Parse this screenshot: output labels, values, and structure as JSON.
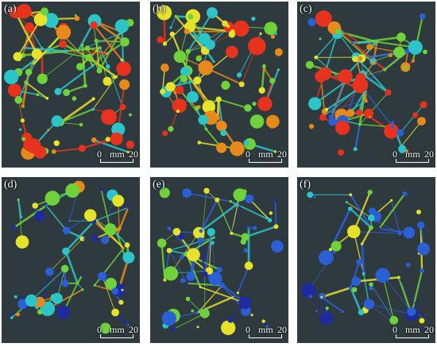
{
  "panels": [
    {
      "label": "(a)",
      "palette": "warm",
      "density": 1.0
    },
    {
      "label": "(b)",
      "palette": "warm",
      "density": 0.85
    },
    {
      "label": "(c)",
      "palette": "mixed",
      "density": 0.7
    },
    {
      "label": "(d)",
      "palette": "mixed-cool",
      "density": 0.55
    },
    {
      "label": "(e)",
      "palette": "cool",
      "density": 0.65
    },
    {
      "label": "(f)",
      "palette": "cool",
      "density": 0.5
    }
  ],
  "scale_bar": {
    "start": "0",
    "unit": "mm",
    "end": "20"
  },
  "colors": {
    "background": "#2e3a3d",
    "red": "#e8321e",
    "orange": "#e88a1a",
    "yellow": "#e6e22a",
    "green": "#6fd23a",
    "cyan": "#2bc4c8",
    "blue": "#2a5fd6",
    "navy": "#1e2aa0"
  }
}
